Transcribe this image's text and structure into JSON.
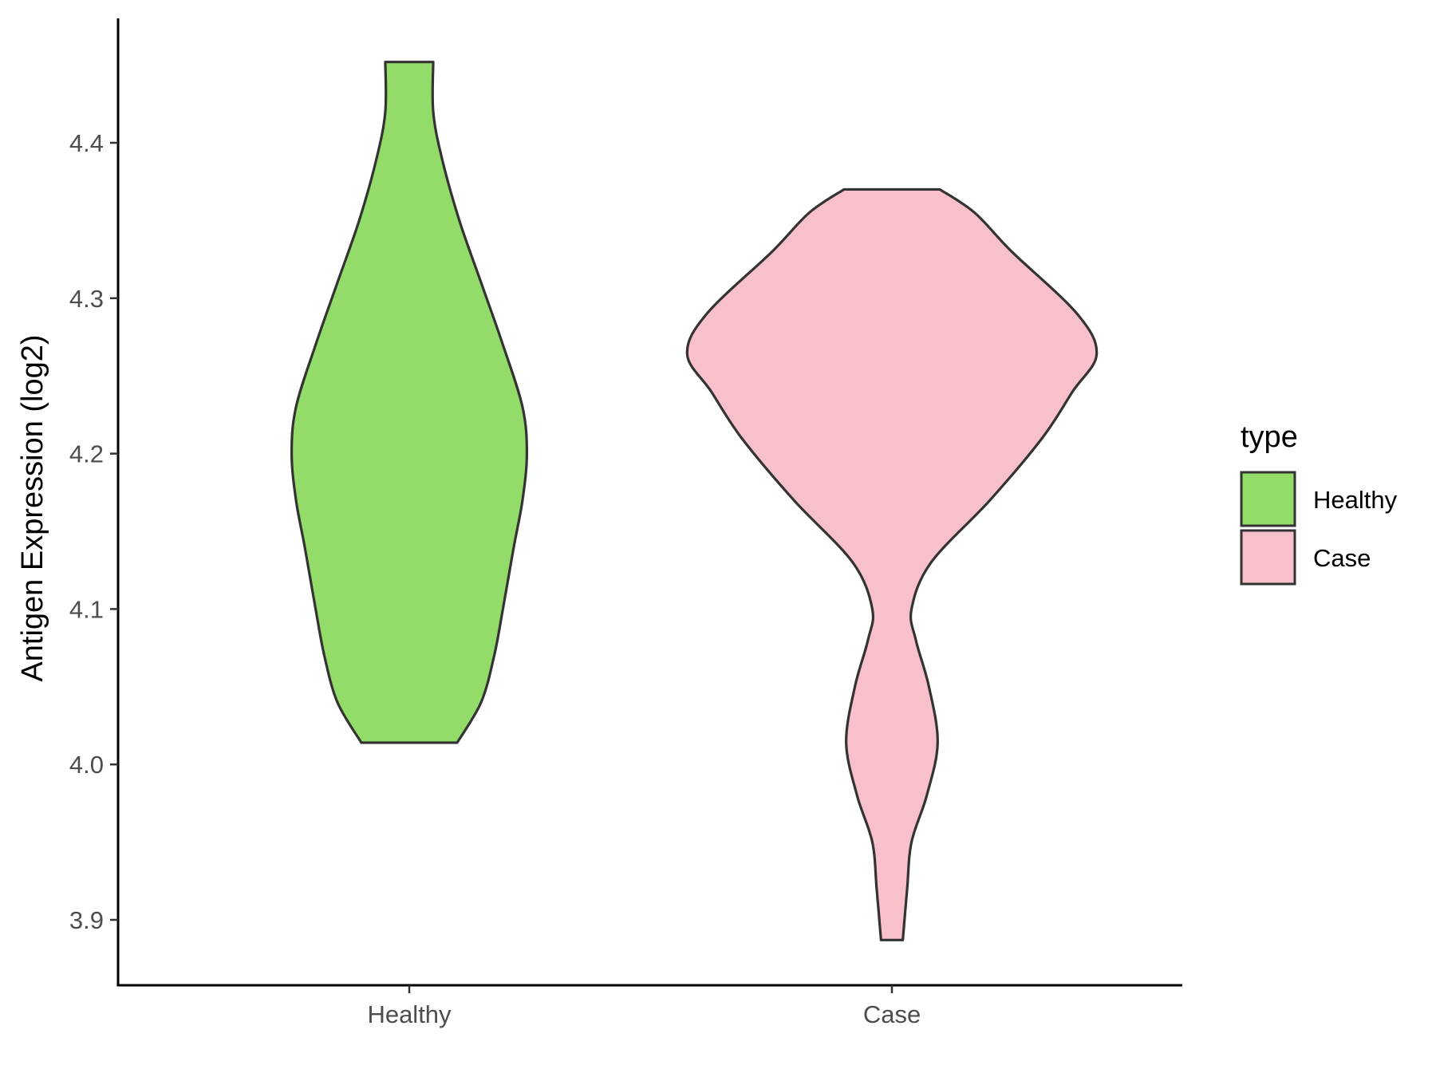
{
  "chart_data": {
    "type": "violin",
    "xlabel": "",
    "ylabel": "Antigen Expression (log2)",
    "ylim": [
      3.86,
      4.48
    ],
    "yticks": [
      3.9,
      4.0,
      4.1,
      4.2,
      4.3,
      4.4
    ],
    "ytick_labels": [
      "3.9",
      "4.0",
      "4.1",
      "4.2",
      "4.3",
      "4.4"
    ],
    "grid": false,
    "legend": {
      "title": "type",
      "position": "right"
    },
    "series": [
      {
        "name": "Healthy",
        "color": "#93dc6a",
        "min": 4.014,
        "max": 4.452,
        "density_profile": [
          [
            4.014,
            0.22
          ],
          [
            4.04,
            0.33
          ],
          [
            4.07,
            0.39
          ],
          [
            4.1,
            0.43
          ],
          [
            4.14,
            0.48
          ],
          [
            4.17,
            0.52
          ],
          [
            4.2,
            0.54
          ],
          [
            4.23,
            0.52
          ],
          [
            4.27,
            0.43
          ],
          [
            4.31,
            0.33
          ],
          [
            4.35,
            0.23
          ],
          [
            4.39,
            0.15
          ],
          [
            4.42,
            0.11
          ],
          [
            4.452,
            0.11
          ]
        ]
      },
      {
        "name": "Case",
        "color": "#f7c0cb",
        "min": 3.887,
        "max": 4.37,
        "density_profile": [
          [
            3.887,
            0.05
          ],
          [
            3.92,
            0.07
          ],
          [
            3.95,
            0.09
          ],
          [
            3.98,
            0.16
          ],
          [
            4.014,
            0.21
          ],
          [
            4.05,
            0.17
          ],
          [
            4.08,
            0.11
          ],
          [
            4.1,
            0.09
          ],
          [
            4.13,
            0.18
          ],
          [
            4.17,
            0.45
          ],
          [
            4.21,
            0.69
          ],
          [
            4.24,
            0.83
          ],
          [
            4.264,
            0.94
          ],
          [
            4.29,
            0.85
          ],
          [
            4.33,
            0.55
          ],
          [
            4.355,
            0.38
          ],
          [
            4.37,
            0.22
          ]
        ]
      }
    ],
    "categories": [
      "Healthy",
      "Case"
    ],
    "outline_color": "#333333"
  }
}
